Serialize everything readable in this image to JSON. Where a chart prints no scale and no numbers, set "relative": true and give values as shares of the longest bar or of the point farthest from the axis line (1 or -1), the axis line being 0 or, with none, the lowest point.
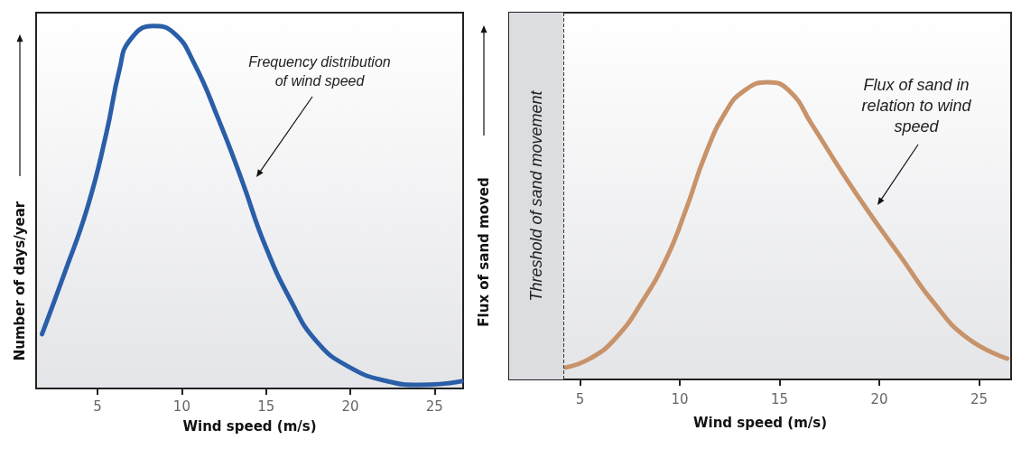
{
  "chart_data": [
    {
      "type": "line",
      "xlabel": "Wind speed (m/s)",
      "ylabel": "Number of days/year",
      "relative": true,
      "marker": "none",
      "xlim": [
        1.35,
        26.7
      ],
      "xticks": [
        5,
        10,
        15,
        20,
        25
      ],
      "x": [
        1.7,
        3.05,
        4.4,
        5.5,
        6.3,
        6.9,
        8.3,
        9.55,
        10.7,
        12.2,
        13.6,
        14.9,
        16.5,
        18.0,
        19.9,
        22.2,
        24.1,
        26.6
      ],
      "series": [
        {
          "color": "#2a5ea8",
          "values": [
            0.15,
            0.32,
            0.5,
            0.7,
            0.88,
            0.96,
            1.0,
            0.98,
            0.9,
            0.74,
            0.57,
            0.4,
            0.24,
            0.13,
            0.06,
            0.02,
            0.01,
            0.02
          ]
        }
      ],
      "annotations": [
        "Frequency distribution\nof wind speed"
      ]
    },
    {
      "type": "line",
      "xlabel": "Wind speed (m/s)",
      "ylabel": "Flux of sand moved",
      "relative": true,
      "marker": "none",
      "xlim": [
        1.45,
        26.6
      ],
      "xticks": [
        5,
        10,
        15,
        20,
        25
      ],
      "x": [
        4.27,
        5.5,
        6.8,
        8.1,
        9.35,
        10.3,
        11.3,
        12.3,
        13.2,
        14.4,
        15.5,
        16.6,
        18.1,
        19.5,
        21.1,
        22.7,
        24.4,
        26.4
      ],
      "series": [
        {
          "color": "#c8936a",
          "values": [
            0.04,
            0.07,
            0.14,
            0.26,
            0.41,
            0.57,
            0.76,
            0.9,
            0.97,
            1.0,
            0.97,
            0.86,
            0.7,
            0.56,
            0.41,
            0.26,
            0.14,
            0.07
          ]
        }
      ],
      "bands": [
        {
          "axis": "x",
          "from": 1.45,
          "to": 4.16,
          "label": "Threshold of sand movement",
          "color": "#dcdde0"
        }
      ],
      "ref_lines": [
        {
          "axis": "x",
          "value": 4.16,
          "line_style": "dashed"
        }
      ],
      "annotations": [
        "Flux of sand in\nrelation to wind\nspeed"
      ]
    }
  ]
}
